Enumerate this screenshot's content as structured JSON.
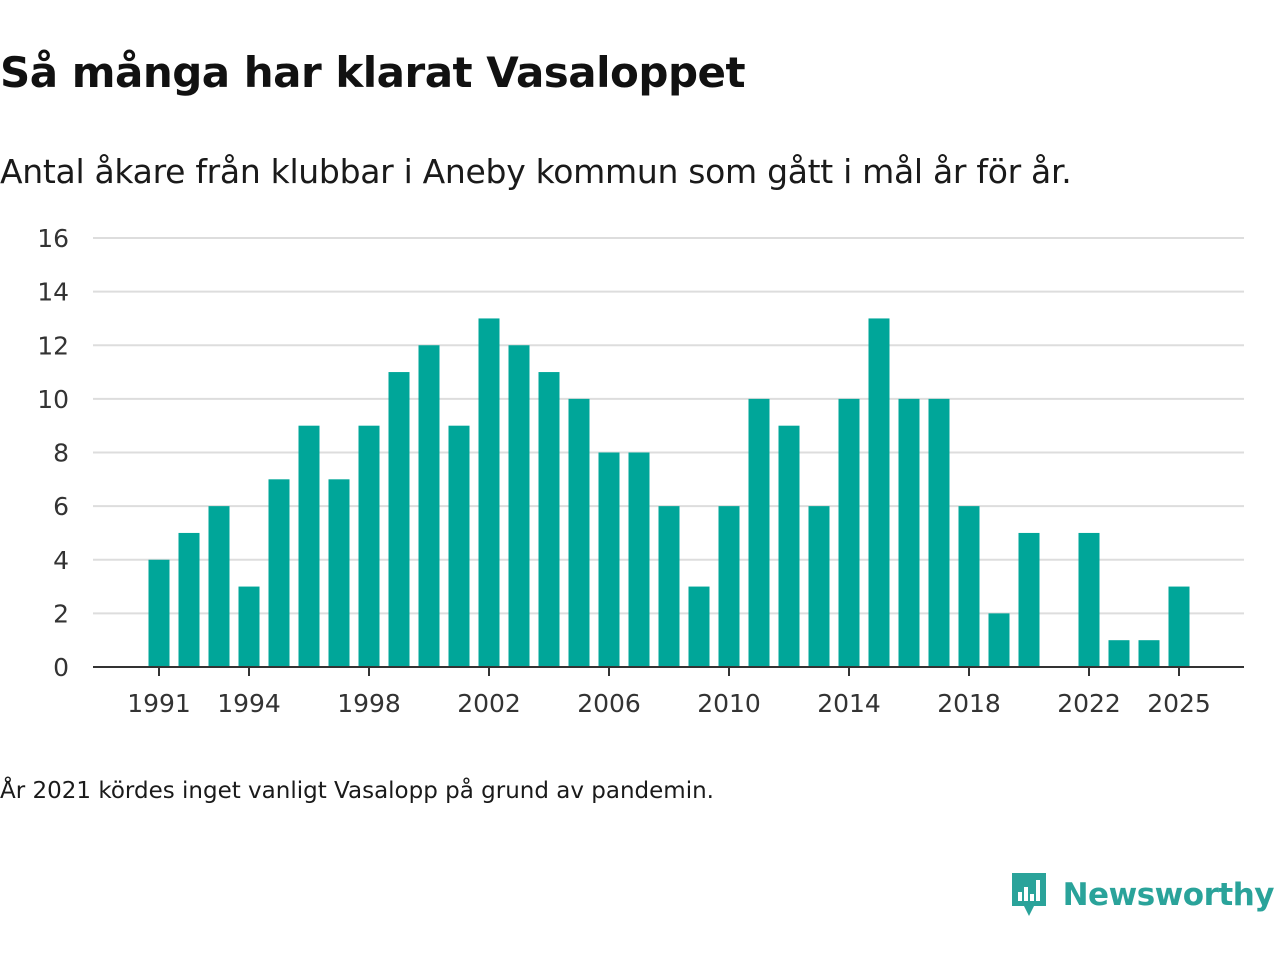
{
  "header": {
    "title": "Så många har klarat Vasaloppet",
    "subtitle": "Antal åkare från klubbar i Aneby kommun som gått i mål år för år."
  },
  "footer": {
    "note": "År 2021 kördes inget vanligt Vasalopp på grund av pandemin.",
    "brand_name": "Newsworthy"
  },
  "colors": {
    "bar": "#00a699",
    "grid": "#dddddd",
    "axis": "#333333",
    "brand": "#2aa39a"
  },
  "chart_data": {
    "type": "bar",
    "title": "Så många har klarat Vasaloppet",
    "subtitle": "Antal åkare från klubbar i Aneby kommun som gått i mål år för år.",
    "xlabel": "",
    "ylabel": "",
    "categories": [
      1991,
      1992,
      1993,
      1994,
      1995,
      1996,
      1997,
      1998,
      1999,
      2000,
      2001,
      2002,
      2003,
      2004,
      2005,
      2006,
      2007,
      2008,
      2009,
      2010,
      2011,
      2012,
      2013,
      2014,
      2015,
      2016,
      2017,
      2018,
      2019,
      2020,
      2021,
      2022,
      2023,
      2024,
      2025
    ],
    "values": [
      4,
      5,
      6,
      3,
      7,
      9,
      7,
      9,
      11,
      12,
      9,
      13,
      12,
      11,
      10,
      8,
      8,
      6,
      3,
      6,
      10,
      9,
      6,
      10,
      13,
      10,
      10,
      6,
      2,
      5,
      null,
      5,
      1,
      1,
      3
    ],
    "ylim": [
      0,
      16
    ],
    "yticks": [
      0,
      2,
      4,
      6,
      8,
      10,
      12,
      14,
      16
    ],
    "xticks": [
      1991,
      1994,
      1998,
      2002,
      2006,
      2010,
      2014,
      2018,
      2022,
      2025
    ],
    "grid": true,
    "legend": "none"
  }
}
